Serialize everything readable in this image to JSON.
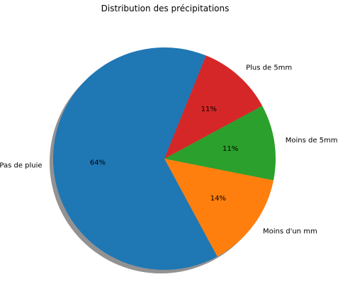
{
  "chart_data": {
    "type": "pie",
    "title": "Distribution des précipitations",
    "labels": [
      "Pas de pluie",
      "Moins d'un mm",
      "Moins de 5mm",
      "Plus de 5mm"
    ],
    "values": [
      64,
      14,
      11,
      11
    ],
    "percent_labels": [
      "64%",
      "14%",
      "11%",
      "11%"
    ],
    "colors": [
      "#1f77b4",
      "#ff7f0e",
      "#2ca02c",
      "#d62728"
    ],
    "shadow": true,
    "start_angle_deg": 68
  }
}
